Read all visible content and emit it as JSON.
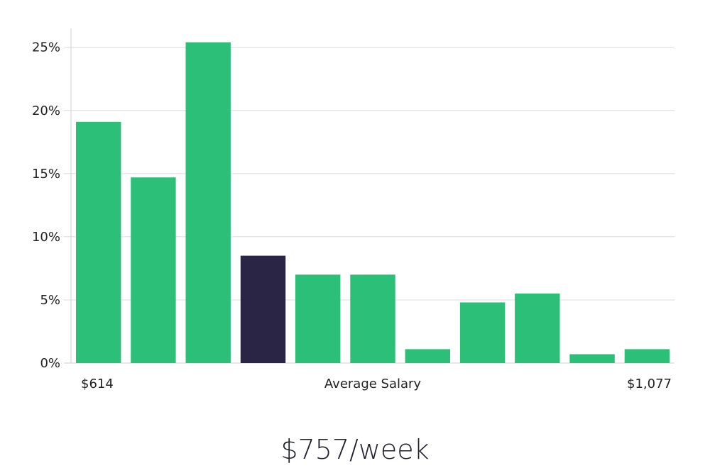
{
  "chart_data": {
    "type": "bar",
    "values": [
      19.1,
      14.7,
      25.4,
      8.5,
      7.0,
      7.0,
      1.1,
      4.8,
      5.5,
      0.7,
      1.1
    ],
    "highlight_index": 3,
    "y_ticks": [
      "0%",
      "5%",
      "10%",
      "15%",
      "20%",
      "25%"
    ],
    "ylim": [
      0,
      26.5
    ],
    "x_min_label": "$614",
    "x_max_label": "$1,077",
    "xlabel": "Average Salary",
    "grid": true,
    "colors": {
      "bar": "#2bbf78",
      "highlight": "#2a2545",
      "grid": "#dcdcdc",
      "axis": "#cfcfcf"
    }
  },
  "salary": "$757/week"
}
